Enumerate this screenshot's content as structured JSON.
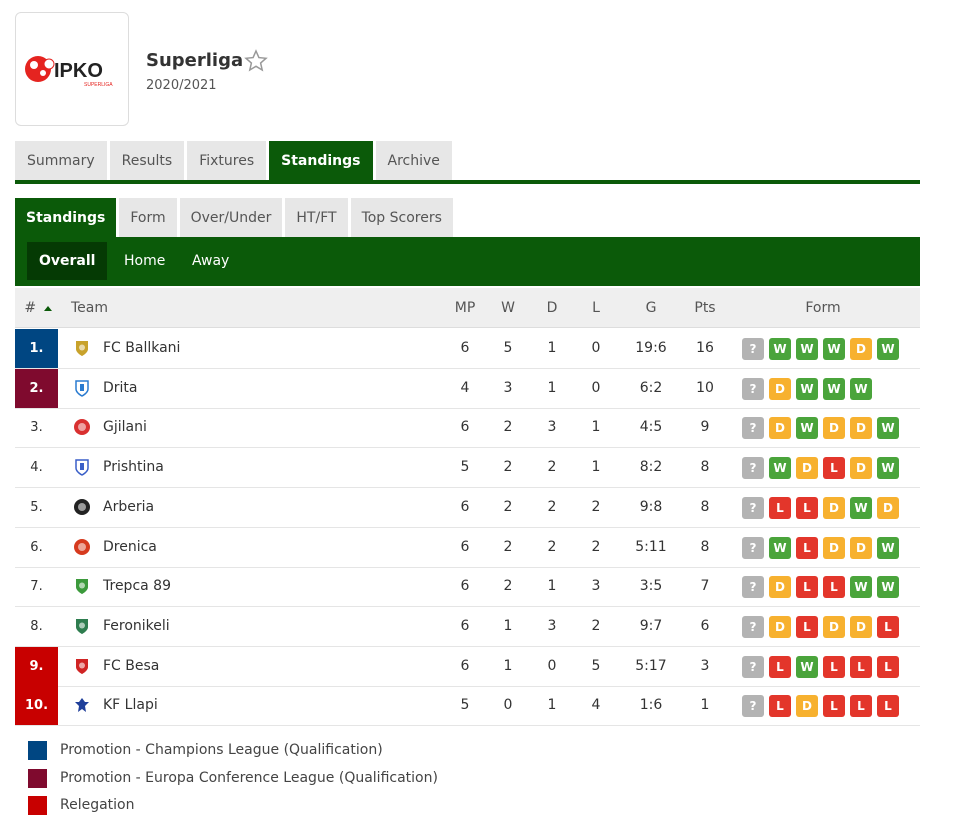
{
  "header": {
    "title": "Superliga",
    "season": "2020/2021",
    "logo_text": "IPKO",
    "logo_subtext": "SUPERLIGA"
  },
  "main_tabs": [
    "Summary",
    "Results",
    "Fixtures",
    "Standings",
    "Archive"
  ],
  "main_tab_active": "Standings",
  "sub_tabs": [
    "Standings",
    "Form",
    "Over/Under",
    "HT/FT",
    "Top Scorers"
  ],
  "sub_tab_active": "Standings",
  "view_tabs": [
    "Overall",
    "Home",
    "Away"
  ],
  "view_tab_active": "Overall",
  "table_headers": {
    "rank": "#",
    "team": "Team",
    "mp": "MP",
    "w": "W",
    "d": "D",
    "l": "L",
    "g": "G",
    "pts": "Pts",
    "form": "Form"
  },
  "colors": {
    "green": "#0b5a09",
    "champions": "#004682",
    "conference": "#7f0a2e",
    "relegation": "#c80000",
    "form_w": "#4aa43b",
    "form_d": "#f7b12f",
    "form_l": "#e3362b",
    "form_q": "#b3b3b3"
  },
  "rows": [
    {
      "rank": "1.",
      "team": "FC Ballkani",
      "mp": "6",
      "w": "5",
      "d": "1",
      "l": "0",
      "g": "19:6",
      "pts": "16",
      "zone": "champions",
      "icon": "shield-icon",
      "icon_color": "#c8a22b",
      "form": [
        "?",
        "W",
        "W",
        "W",
        "D",
        "W"
      ]
    },
    {
      "rank": "2.",
      "team": "Drita",
      "mp": "4",
      "w": "3",
      "d": "1",
      "l": "0",
      "g": "6:2",
      "pts": "10",
      "zone": "conference",
      "icon": "crest-icon",
      "icon_color": "#2a7bd0",
      "form": [
        "?",
        "D",
        "W",
        "W",
        "W"
      ]
    },
    {
      "rank": "3.",
      "team": "Gjilani",
      "mp": "6",
      "w": "2",
      "d": "3",
      "l": "1",
      "g": "4:5",
      "pts": "9",
      "zone": "",
      "icon": "round-badge-icon",
      "icon_color": "#d93030",
      "form": [
        "?",
        "D",
        "W",
        "D",
        "D",
        "W"
      ]
    },
    {
      "rank": "4.",
      "team": "Prishtina",
      "mp": "5",
      "w": "2",
      "d": "2",
      "l": "1",
      "g": "8:2",
      "pts": "8",
      "zone": "",
      "icon": "crest-icon",
      "icon_color": "#3a5fc8",
      "form": [
        "?",
        "W",
        "D",
        "L",
        "D",
        "W"
      ]
    },
    {
      "rank": "5.",
      "team": "Arberia",
      "mp": "6",
      "w": "2",
      "d": "2",
      "l": "2",
      "g": "9:8",
      "pts": "8",
      "zone": "",
      "icon": "round-badge-icon",
      "icon_color": "#222222",
      "form": [
        "?",
        "L",
        "L",
        "D",
        "W",
        "D"
      ]
    },
    {
      "rank": "6.",
      "team": "Drenica",
      "mp": "6",
      "w": "2",
      "d": "2",
      "l": "2",
      "g": "5:11",
      "pts": "8",
      "zone": "",
      "icon": "round-badge-icon",
      "icon_color": "#d63a1e",
      "form": [
        "?",
        "W",
        "L",
        "D",
        "D",
        "W"
      ]
    },
    {
      "rank": "7.",
      "team": "Trepca 89",
      "mp": "6",
      "w": "2",
      "d": "1",
      "l": "3",
      "g": "3:5",
      "pts": "7",
      "zone": "",
      "icon": "shield-icon",
      "icon_color": "#3c9a3c",
      "form": [
        "?",
        "D",
        "L",
        "L",
        "W",
        "W"
      ]
    },
    {
      "rank": "8.",
      "team": "Feronikeli",
      "mp": "6",
      "w": "1",
      "d": "3",
      "l": "2",
      "g": "9:7",
      "pts": "6",
      "zone": "",
      "icon": "shield-icon",
      "icon_color": "#2e7d4f",
      "form": [
        "?",
        "D",
        "L",
        "D",
        "D",
        "L"
      ]
    },
    {
      "rank": "9.",
      "team": "FC Besa",
      "mp": "6",
      "w": "1",
      "d": "0",
      "l": "5",
      "g": "5:17",
      "pts": "3",
      "zone": "relegation",
      "icon": "shield-icon",
      "icon_color": "#d02424",
      "form": [
        "?",
        "L",
        "W",
        "L",
        "L",
        "L"
      ]
    },
    {
      "rank": "10.",
      "team": "KF Llapi",
      "mp": "5",
      "w": "0",
      "d": "1",
      "l": "4",
      "g": "1:6",
      "pts": "1",
      "zone": "relegation",
      "icon": "eagle-icon",
      "icon_color": "#1f3f9a",
      "form": [
        "?",
        "L",
        "D",
        "L",
        "L",
        "L"
      ]
    }
  ],
  "legend": [
    {
      "label": "Promotion - Champions League (Qualification)",
      "zone": "champions"
    },
    {
      "label": "Promotion - Europa Conference League (Qualification)",
      "zone": "conference"
    },
    {
      "label": "Relegation",
      "zone": "relegation"
    }
  ]
}
